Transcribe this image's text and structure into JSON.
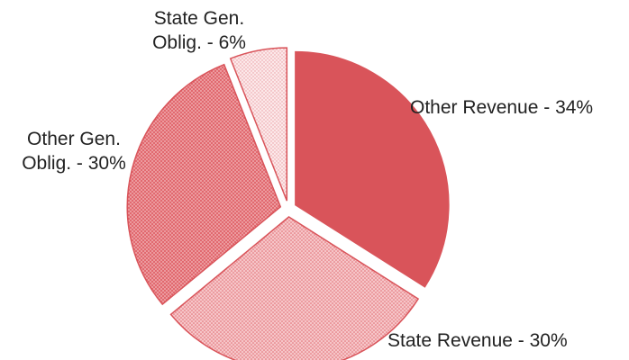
{
  "chart_data": {
    "type": "pie",
    "title": "",
    "slices": [
      {
        "label_lines": [
          "Other Revenue - 34%"
        ],
        "value": 34,
        "color": "#d9545a",
        "pattern": "solid"
      },
      {
        "label_lines": [
          "State Revenue - 30%"
        ],
        "value": 30,
        "color": "#f0a7ab",
        "pattern": "dots"
      },
      {
        "label_lines": [
          "Other Gen.",
          "Oblig. - 30%"
        ],
        "value": 30,
        "color": "#e27b80",
        "pattern": "dots"
      },
      {
        "label_lines": [
          "State Gen.",
          "Oblig. - 6%"
        ],
        "value": 6,
        "color": "#f9d9db",
        "pattern": "dots"
      }
    ],
    "legend": "none",
    "slice_order": "clockwise-from-top",
    "exploded": true
  }
}
